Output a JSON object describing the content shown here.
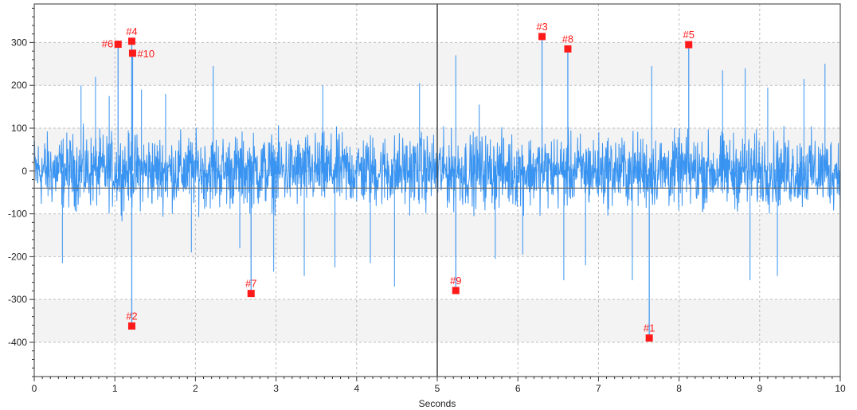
{
  "colors": {
    "signal": "#2f8ef0",
    "marker": "#ff1a1a",
    "grid": "#bdbdbd",
    "band": "#f3f3f3",
    "frame": "#555555"
  },
  "chart_data": {
    "type": "line",
    "xlabel": "Seconds",
    "ylabel": "",
    "xlim": [
      0,
      10
    ],
    "ylim": [
      -480,
      390
    ],
    "x_ticks": [
      0,
      1,
      2,
      3,
      4,
      5,
      6,
      7,
      8,
      9,
      10
    ],
    "y_ticks": [
      300,
      200,
      100,
      0,
      -100,
      -200,
      -300,
      -400
    ],
    "x_tick_labels": [
      "0",
      "1",
      "2",
      "3",
      "4",
      "5",
      "6",
      "7",
      "8",
      "9",
      "10"
    ],
    "y_tick_labels": [
      "300",
      "200",
      "100",
      "0",
      "-100",
      "-200",
      "-300",
      "-400"
    ],
    "grid": true,
    "cursor_x": 5,
    "baseline_y": -40,
    "signal_envelope": {
      "min": -100,
      "max": 100,
      "mean": 0
    },
    "spikes": [
      {
        "x": 0.35,
        "y": -215
      },
      {
        "x": 0.58,
        "y": 200
      },
      {
        "x": 0.76,
        "y": 220
      },
      {
        "x": 0.93,
        "y": 175
      },
      {
        "x": 1.33,
        "y": 190
      },
      {
        "x": 1.63,
        "y": 180
      },
      {
        "x": 1.95,
        "y": -190
      },
      {
        "x": 2.22,
        "y": 245
      },
      {
        "x": 2.55,
        "y": -180
      },
      {
        "x": 2.97,
        "y": -235
      },
      {
        "x": 3.35,
        "y": -245
      },
      {
        "x": 3.58,
        "y": 200
      },
      {
        "x": 3.73,
        "y": -225
      },
      {
        "x": 4.17,
        "y": -215
      },
      {
        "x": 4.47,
        "y": -270
      },
      {
        "x": 4.78,
        "y": 205
      },
      {
        "x": 5.23,
        "y": 270
      },
      {
        "x": 5.52,
        "y": 155
      },
      {
        "x": 5.72,
        "y": -205
      },
      {
        "x": 6.06,
        "y": -195
      },
      {
        "x": 6.57,
        "y": -255
      },
      {
        "x": 6.84,
        "y": -220
      },
      {
        "x": 7.42,
        "y": -255
      },
      {
        "x": 7.66,
        "y": 245
      },
      {
        "x": 8.54,
        "y": 235
      },
      {
        "x": 8.82,
        "y": 240
      },
      {
        "x": 8.88,
        "y": -255
      },
      {
        "x": 9.1,
        "y": 195
      },
      {
        "x": 9.22,
        "y": -245
      },
      {
        "x": 9.55,
        "y": 215
      },
      {
        "x": 9.81,
        "y": 250
      }
    ],
    "peaks": [
      {
        "label": "#1",
        "x": 7.63,
        "y": -390
      },
      {
        "label": "#2",
        "x": 1.21,
        "y": -362
      },
      {
        "label": "#3",
        "x": 6.3,
        "y": 314
      },
      {
        "label": "#4",
        "x": 1.21,
        "y": 303
      },
      {
        "label": "#5",
        "x": 8.12,
        "y": 295
      },
      {
        "label": "#6",
        "x": 1.04,
        "y": 296
      },
      {
        "label": "#7",
        "x": 2.69,
        "y": -286
      },
      {
        "label": "#8",
        "x": 6.62,
        "y": 285
      },
      {
        "label": "#9",
        "x": 5.23,
        "y": -279
      },
      {
        "label": "#10",
        "x": 1.22,
        "y": 275
      }
    ]
  }
}
